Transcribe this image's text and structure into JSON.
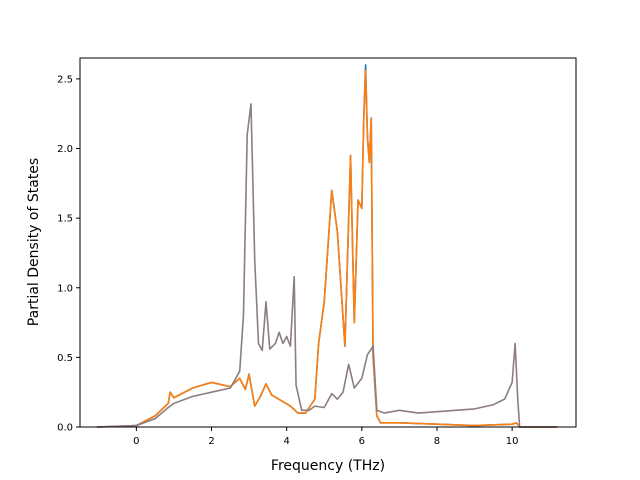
{
  "chart_data": {
    "type": "line",
    "xlabel": "Frequency (THz)",
    "ylabel": "Partial Density of States",
    "xlim": [
      -1.5,
      11.7
    ],
    "ylim": [
      0,
      2.65
    ],
    "xticks": [
      0,
      2,
      4,
      6,
      8,
      10
    ],
    "xtick_labels": [
      "0",
      "2",
      "4",
      "6",
      "8",
      "10"
    ],
    "yticks": [
      0,
      0.5,
      1.0,
      1.5,
      2.0,
      2.5
    ],
    "ytick_labels": [
      "0.0",
      "0.5",
      "1.0",
      "1.5",
      "2.0",
      "2.5"
    ],
    "grid": false,
    "legend": "none",
    "series": [
      {
        "color": "#1f77b4",
        "x": [
          -1.05,
          0,
          0.5,
          0.85,
          0.9,
          1.0,
          1.5,
          2.0,
          2.5,
          2.75,
          2.9,
          3.0,
          3.05,
          3.15,
          3.3,
          3.45,
          3.6,
          4.1,
          4.3,
          4.5,
          4.75,
          4.85,
          5.0,
          5.2,
          5.35,
          5.55,
          5.7,
          5.8,
          5.9,
          6.0,
          6.05,
          6.1,
          6.15,
          6.2,
          6.25,
          6.3,
          6.4,
          6.5,
          7.0,
          8.0,
          9.0,
          10.0,
          10.1,
          10.15,
          10.2,
          11.2
        ],
        "y": [
          0,
          0.01,
          0.08,
          0.17,
          0.25,
          0.21,
          0.28,
          0.32,
          0.29,
          0.35,
          0.27,
          0.38,
          0.3,
          0.15,
          0.22,
          0.31,
          0.23,
          0.15,
          0.1,
          0.1,
          0.2,
          0.6,
          0.9,
          1.7,
          1.4,
          0.58,
          1.95,
          0.75,
          1.63,
          1.57,
          2.2,
          2.6,
          2.08,
          1.9,
          2.22,
          0.5,
          0.08,
          0.03,
          0.03,
          0.02,
          0.01,
          0.02,
          0.03,
          0.02,
          0.0,
          0.0
        ]
      },
      {
        "color": "#ff7f0e",
        "x": [
          -1.05,
          0,
          0.5,
          0.85,
          0.9,
          1.0,
          1.5,
          2.0,
          2.5,
          2.75,
          2.9,
          3.0,
          3.05,
          3.15,
          3.3,
          3.45,
          3.6,
          4.1,
          4.3,
          4.5,
          4.75,
          4.85,
          5.0,
          5.2,
          5.35,
          5.55,
          5.7,
          5.8,
          5.9,
          6.0,
          6.05,
          6.1,
          6.15,
          6.2,
          6.25,
          6.3,
          6.4,
          6.5,
          7.0,
          8.0,
          9.0,
          10.0,
          10.1,
          10.15,
          10.2,
          11.2
        ],
        "y": [
          0,
          0.01,
          0.08,
          0.17,
          0.25,
          0.21,
          0.28,
          0.32,
          0.29,
          0.35,
          0.27,
          0.38,
          0.3,
          0.15,
          0.22,
          0.31,
          0.23,
          0.15,
          0.1,
          0.1,
          0.2,
          0.6,
          0.9,
          1.7,
          1.4,
          0.58,
          1.95,
          0.75,
          1.63,
          1.57,
          2.2,
          2.56,
          2.08,
          1.9,
          2.22,
          0.5,
          0.08,
          0.03,
          0.03,
          0.02,
          0.01,
          0.02,
          0.03,
          0.02,
          0.0,
          0.0
        ]
      },
      {
        "color": "#8c7d82",
        "x": [
          -1.05,
          0,
          0.5,
          0.85,
          1.0,
          1.5,
          2.0,
          2.5,
          2.75,
          2.85,
          2.95,
          3.05,
          3.15,
          3.25,
          3.35,
          3.45,
          3.55,
          3.7,
          3.8,
          3.9,
          4.0,
          4.1,
          4.2,
          4.25,
          4.4,
          4.6,
          4.75,
          5.0,
          5.2,
          5.35,
          5.5,
          5.65,
          5.8,
          6.0,
          6.15,
          6.3,
          6.4,
          6.6,
          7.0,
          7.5,
          8.0,
          8.5,
          9.0,
          9.5,
          9.8,
          10.0,
          10.08,
          10.15,
          10.2,
          11.2
        ],
        "y": [
          0,
          0.01,
          0.06,
          0.14,
          0.17,
          0.22,
          0.25,
          0.28,
          0.4,
          0.8,
          2.1,
          2.32,
          1.2,
          0.6,
          0.55,
          0.9,
          0.56,
          0.6,
          0.68,
          0.6,
          0.65,
          0.58,
          1.08,
          0.3,
          0.12,
          0.12,
          0.15,
          0.14,
          0.24,
          0.2,
          0.25,
          0.45,
          0.28,
          0.35,
          0.52,
          0.58,
          0.12,
          0.1,
          0.12,
          0.1,
          0.11,
          0.12,
          0.13,
          0.16,
          0.2,
          0.32,
          0.6,
          0.2,
          0.0,
          0.0
        ]
      }
    ]
  }
}
